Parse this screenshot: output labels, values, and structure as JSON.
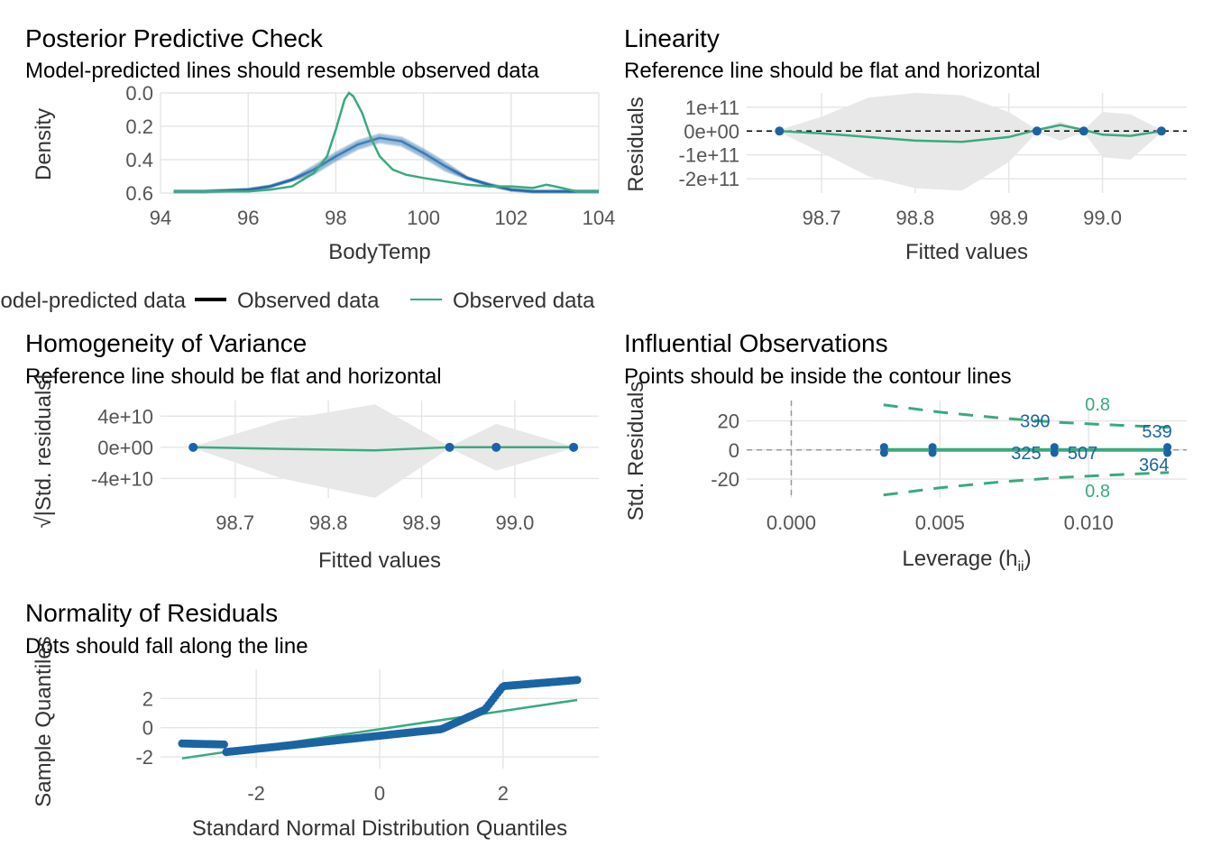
{
  "colors": {
    "blue": "#1b64a4",
    "green": "#3aaa7e",
    "grid": "#e5e5e5",
    "ribbon": "#e8e8e8"
  },
  "legend": {
    "model_predicted": "Model-predicted data",
    "observed_1": "Observed data",
    "observed_2": "Observed data"
  },
  "chart_data": [
    {
      "id": "ppc",
      "type": "line",
      "title": "Posterior Predictive Check",
      "subtitle": "Model-predicted lines should resemble observed data",
      "xlabel": "BodyTemp",
      "ylabel": "Density",
      "xlim": [
        94,
        104
      ],
      "ylim": [
        0,
        0.6
      ],
      "xticks": [
        "94",
        "96",
        "98",
        "100",
        "102",
        "104"
      ],
      "yticks": [
        "0.0",
        "0.2",
        "0.4",
        "0.6"
      ],
      "series": [
        {
          "name": "Model-predicted data",
          "x": [
            94.3,
            95,
            96,
            96.5,
            97,
            97.5,
            98,
            98.5,
            99,
            99.5,
            100,
            100.5,
            101,
            101.5,
            102,
            102.5,
            103,
            103.5,
            104
          ],
          "y": [
            0.01,
            0.01,
            0.02,
            0.04,
            0.08,
            0.14,
            0.22,
            0.29,
            0.33,
            0.31,
            0.24,
            0.16,
            0.09,
            0.05,
            0.02,
            0.01,
            0.01,
            0.01,
            0.01
          ]
        },
        {
          "name": "Observed data",
          "x": [
            94.3,
            95,
            96,
            96.5,
            97,
            97.5,
            97.8,
            98,
            98.2,
            98.3,
            98.4,
            98.6,
            98.8,
            99,
            99.3,
            99.6,
            100,
            100.5,
            101,
            101.5,
            102,
            102.5,
            102.8,
            103,
            103.5,
            104
          ],
          "y": [
            0.01,
            0.01,
            0.01,
            0.02,
            0.04,
            0.12,
            0.22,
            0.38,
            0.56,
            0.6,
            0.58,
            0.48,
            0.33,
            0.22,
            0.14,
            0.11,
            0.09,
            0.07,
            0.05,
            0.04,
            0.04,
            0.03,
            0.05,
            0.04,
            0.01,
            0.01
          ]
        }
      ]
    },
    {
      "id": "linearity",
      "type": "line",
      "title": "Linearity",
      "subtitle": "Reference line should be flat and horizontal",
      "xlabel": "Fitted values",
      "ylabel": "Residuals",
      "xlim": [
        98.62,
        99.09
      ],
      "ylim": [
        -260000000000.0,
        160000000000.0
      ],
      "xticks": [
        "98.7",
        "98.8",
        "98.9",
        "99.0"
      ],
      "yticks": [
        "1e+11",
        "0e+00",
        "-1e+11",
        "-2e+11"
      ],
      "points": {
        "x": [
          98.655,
          98.93,
          98.98,
          99.063
        ],
        "y": [
          0,
          0,
          0,
          0
        ]
      },
      "smooth": {
        "x": [
          98.655,
          98.7,
          98.75,
          98.8,
          98.85,
          98.9,
          98.93,
          98.955,
          98.98,
          99.0,
          99.03,
          99.063
        ],
        "y": [
          0,
          -10000000000.0,
          -25000000000.0,
          -40000000000.0,
          -45000000000.0,
          -25000000000.0,
          5000000000.0,
          25000000000.0,
          5000000000.0,
          -15000000000.0,
          -20000000000.0,
          0
        ]
      },
      "band_upper": [
        5000000000.0,
        60000000000.0,
        140000000000.0,
        160000000000.0,
        150000000000.0,
        80000000000.0,
        5000000000.0,
        40000000000.0,
        5000000000.0,
        80000000000.0,
        70000000000.0,
        5000000000.0
      ],
      "band_lower": [
        -5000000000.0,
        -90000000000.0,
        -190000000000.0,
        -240000000000.0,
        -250000000000.0,
        -130000000000.0,
        -5000000000.0,
        -40000000000.0,
        -5000000000.0,
        -110000000000.0,
        -120000000000.0,
        -5000000000.0
      ]
    },
    {
      "id": "homogeneity",
      "type": "line",
      "title": "Homogeneity of Variance",
      "subtitle": "Reference line should be flat and horizontal",
      "xlabel": "Fitted values",
      "ylabel": "√|Std. residuals|",
      "xlim": [
        98.62,
        99.09
      ],
      "ylim": [
        -65000000000.0,
        60000000000.0
      ],
      "xticks": [
        "98.7",
        "98.8",
        "98.9",
        "99.0"
      ],
      "yticks": [
        "4e+10",
        "0e+00",
        "-4e+10"
      ],
      "points": {
        "x": [
          98.655,
          98.93,
          98.98,
          99.063
        ],
        "y": [
          0,
          0,
          0,
          0
        ]
      },
      "smooth": {
        "x": [
          98.655,
          98.75,
          98.85,
          98.93,
          98.98,
          99.063
        ],
        "y": [
          0,
          -2000000000.0,
          -4000000000.0,
          0,
          0,
          0
        ]
      },
      "band_upper": [
        1000000000.0,
        35000000000.0,
        55000000000.0,
        1000000000.0,
        30000000000.0,
        1000000000.0
      ],
      "band_lower": [
        -1000000000.0,
        -40000000000.0,
        -65000000000.0,
        -1000000000.0,
        -30000000000.0,
        -1000000000.0
      ]
    },
    {
      "id": "influential",
      "type": "scatter",
      "title": "Influential Observations",
      "subtitle": "Points should be inside the contour lines",
      "xlabel": "Leverage (h",
      "xlabel_sub": "ii",
      "xlabel_end": ")",
      "ylabel": "Std. Residuals",
      "xlim": [
        -0.0015,
        0.0133
      ],
      "ylim": [
        -33,
        34
      ],
      "xticks": [
        "0.000",
        "0.005",
        "0.010"
      ],
      "yticks": [
        "20",
        "0",
        "-20"
      ],
      "points_x": [
        0.00312,
        0.00312,
        0.00475,
        0.00475,
        0.00885,
        0.00885,
        0.01265,
        0.01265
      ],
      "points_y": [
        2,
        -2,
        2,
        -2,
        2,
        -2,
        2,
        -2
      ],
      "labels": [
        "390",
        "539",
        "325",
        "507",
        "364"
      ],
      "contour_label": "0.8"
    },
    {
      "id": "normality",
      "type": "scatter",
      "title": "Normality of Residuals",
      "subtitle": "Dots should fall along the line",
      "xlabel": "Standard Normal Distribution Quantiles",
      "ylabel": "Sample Quantiles",
      "xlim": [
        -3.55,
        3.55
      ],
      "ylim": [
        -2.8,
        4
      ],
      "xticks": [
        "-2",
        "0",
        "2"
      ],
      "yticks": [
        "2",
        "0",
        "-2"
      ],
      "line": {
        "x": [
          -3.2,
          3.2
        ],
        "y": [
          -2.1,
          1.9
        ]
      }
    }
  ]
}
